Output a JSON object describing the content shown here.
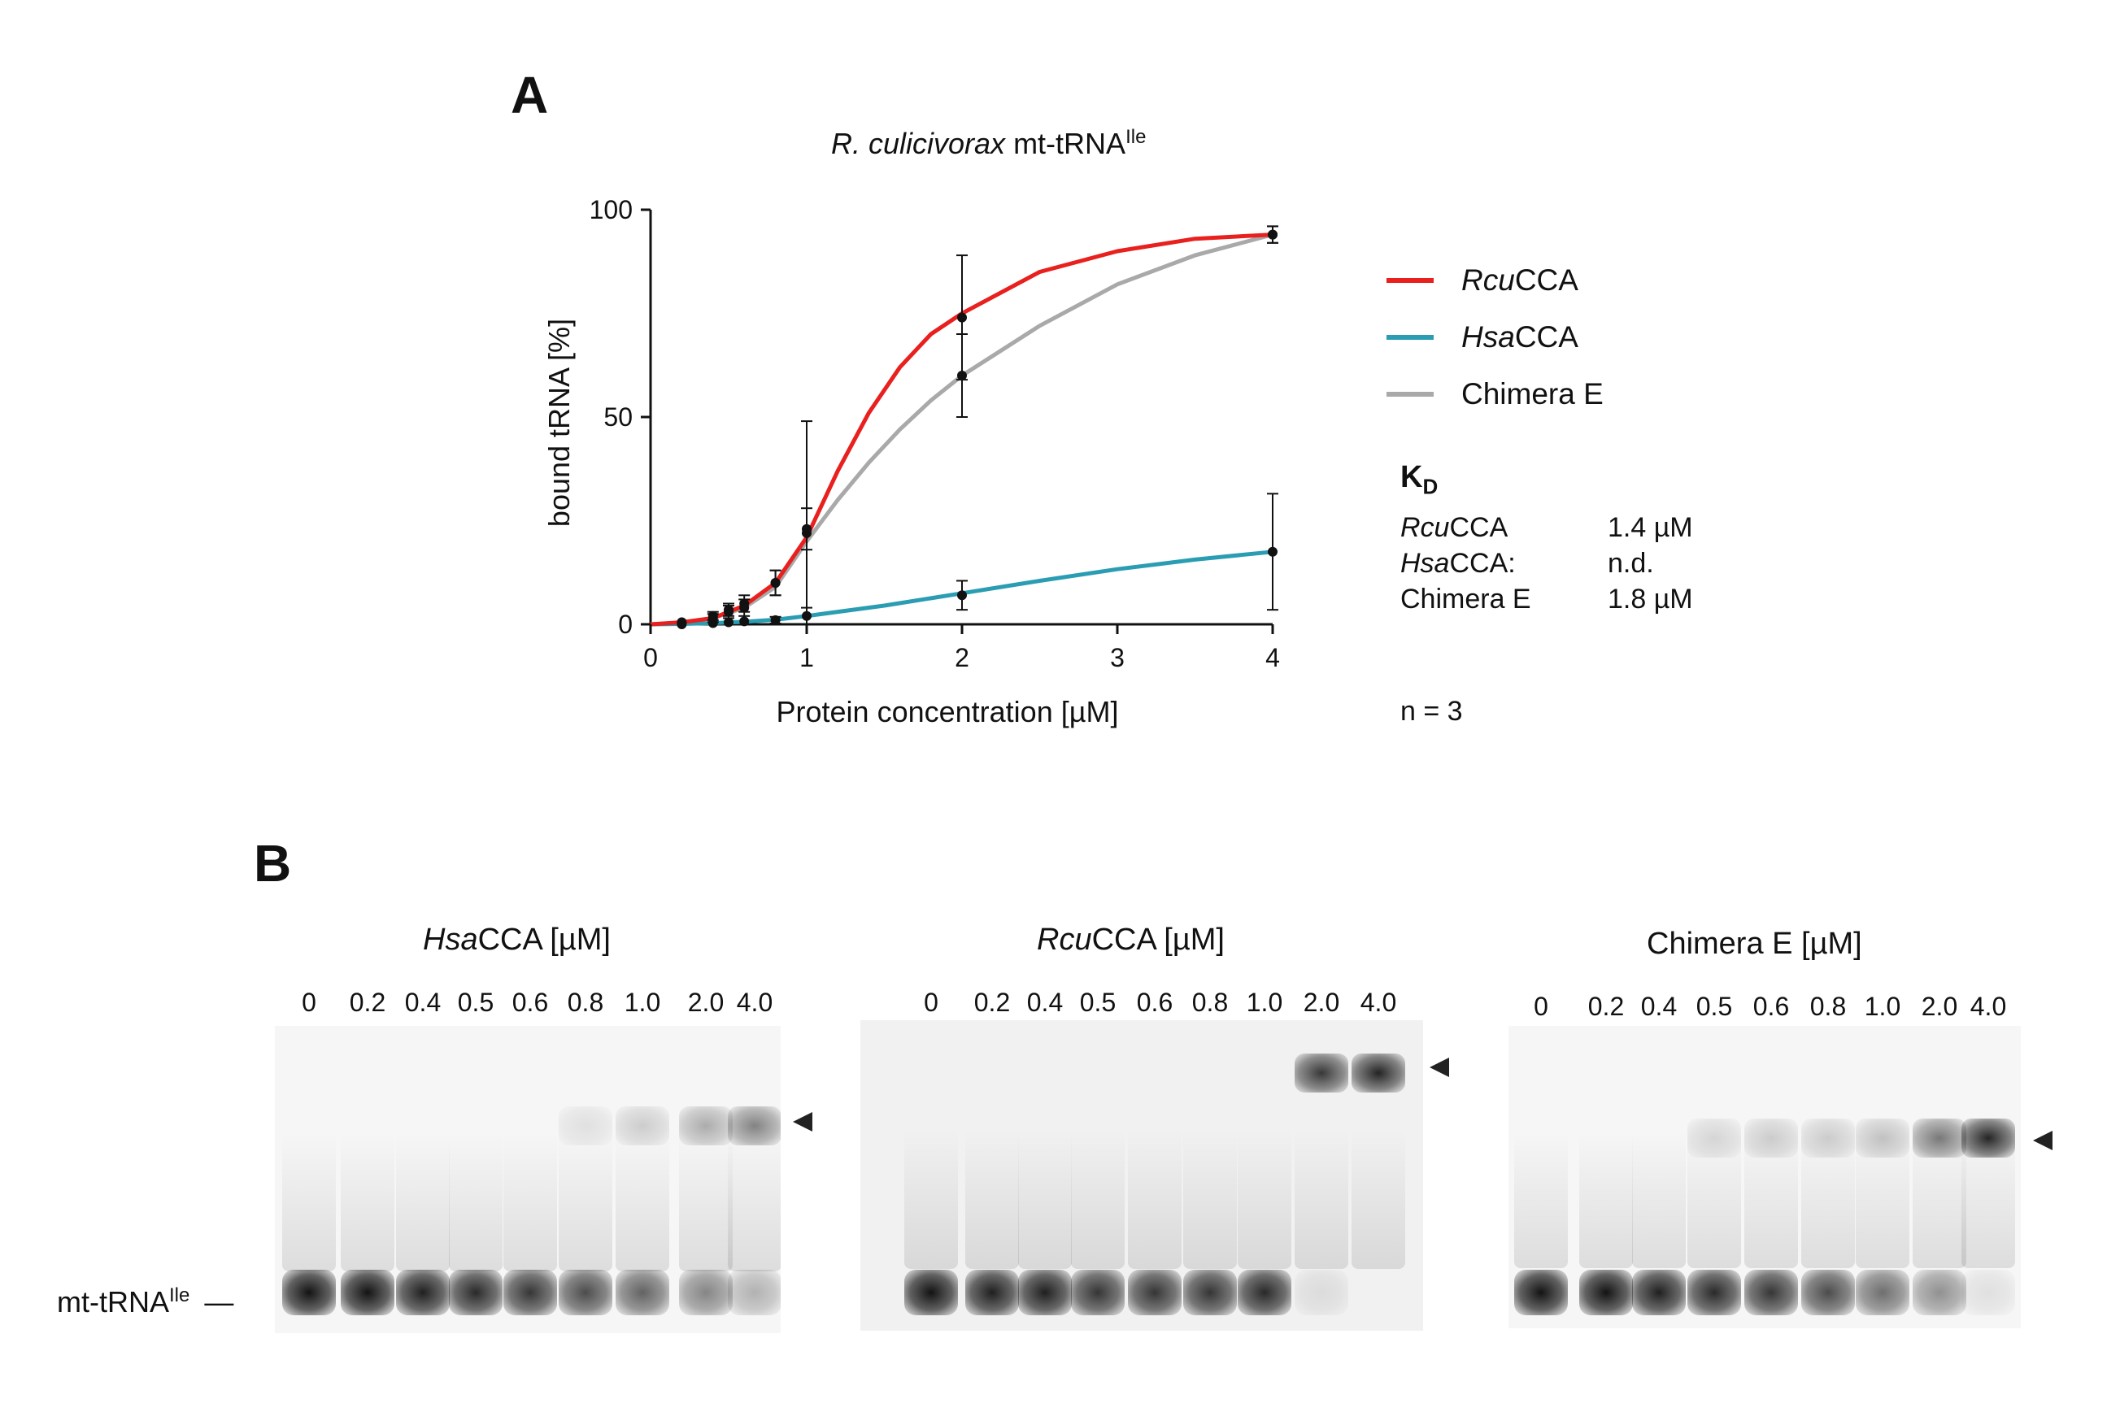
{
  "panels": {
    "a_letter": "A",
    "b_letter": "B"
  },
  "chart_data": {
    "type": "line",
    "title": "R. culicivorax mt-tRNA",
    "title_parts": {
      "species": "R. culicivorax",
      "rest": " mt-tRNA",
      "superscript": "Ile"
    },
    "xlabel": "Protein concentration [µM]",
    "ylabel": "bound tRNA [%]",
    "xlim": [
      0,
      4
    ],
    "ylim": [
      0,
      100
    ],
    "x_ticks": [
      0,
      1,
      2,
      3,
      4
    ],
    "y_ticks": [
      0,
      50,
      100
    ],
    "x_scale": "custom: 0–1 expanded, 1–4 linear",
    "series": [
      {
        "name": "RcuCCA",
        "color": "#e8201e",
        "x": [
          0.2,
          0.4,
          0.5,
          0.6,
          0.8,
          1.0,
          2.0,
          4.0
        ],
        "y": [
          0.5,
          2,
          3.5,
          5,
          10,
          22,
          74,
          94
        ],
        "err": [
          0.5,
          1,
          1.5,
          2,
          3,
          27,
          15,
          2
        ],
        "fit": [
          [
            0,
            0
          ],
          [
            0.2,
            0.5
          ],
          [
            0.4,
            1.5
          ],
          [
            0.6,
            4.5
          ],
          [
            0.8,
            10
          ],
          [
            1.0,
            21
          ],
          [
            1.2,
            37
          ],
          [
            1.4,
            51
          ],
          [
            1.6,
            62
          ],
          [
            1.8,
            70
          ],
          [
            2.0,
            75
          ],
          [
            2.5,
            85
          ],
          [
            3.0,
            90
          ],
          [
            3.5,
            93
          ],
          [
            4.0,
            94
          ]
        ]
      },
      {
        "name": "HsaCCA",
        "color": "#2a9db3",
        "x": [
          0.2,
          0.4,
          0.5,
          0.6,
          0.8,
          1.0,
          2.0,
          4.0
        ],
        "y": [
          0,
          0.3,
          0.5,
          0.7,
          1,
          2,
          7,
          17.5
        ],
        "err": [
          0.3,
          0.3,
          0.4,
          0.5,
          0.8,
          2,
          3.5,
          14
        ],
        "fit": [
          [
            0,
            0
          ],
          [
            0.2,
            0.1
          ],
          [
            0.4,
            0.3
          ],
          [
            0.6,
            0.6
          ],
          [
            0.8,
            1.1
          ],
          [
            1.0,
            2
          ],
          [
            1.5,
            4.5
          ],
          [
            2.0,
            7.5
          ],
          [
            2.5,
            10.5
          ],
          [
            3.0,
            13.3
          ],
          [
            3.5,
            15.6
          ],
          [
            4.0,
            17.5
          ]
        ]
      },
      {
        "name": "Chimera E",
        "color": "#a9a9a9",
        "x": [
          0.2,
          0.4,
          0.5,
          0.6,
          0.8,
          1.0,
          2.0,
          4.0
        ],
        "y": [
          0.5,
          1.5,
          3,
          4,
          10,
          23,
          60,
          94
        ],
        "err": [
          0.5,
          1,
          1.5,
          2,
          3,
          5,
          10,
          2
        ],
        "fit": [
          [
            0,
            0
          ],
          [
            0.2,
            0.4
          ],
          [
            0.4,
            1.5
          ],
          [
            0.6,
            4
          ],
          [
            0.8,
            9
          ],
          [
            1.0,
            20
          ],
          [
            1.2,
            30
          ],
          [
            1.4,
            39
          ],
          [
            1.6,
            47
          ],
          [
            1.8,
            54
          ],
          [
            2.0,
            60
          ],
          [
            2.5,
            72
          ],
          [
            3.0,
            82
          ],
          [
            3.5,
            89
          ],
          [
            4.0,
            94
          ]
        ]
      }
    ],
    "legend": {
      "position": "right",
      "labels": [
        {
          "italic": "Rcu",
          "rest": "CCA",
          "color": "#e8201e"
        },
        {
          "italic": "Hsa",
          "rest": "CCA",
          "color": "#2a9db3"
        },
        {
          "italic": "",
          "rest": "Chimera E",
          "color": "#a9a9a9"
        }
      ]
    }
  },
  "kd": {
    "title_main": "K",
    "title_sub": "D",
    "rows": [
      {
        "italic": "Rcu",
        "rest": "CCA",
        "value": "1.4 µM"
      },
      {
        "italic": "Hsa",
        "rest": "CCA:",
        "value": "n.d."
      },
      {
        "italic": "",
        "rest": "Chimera E",
        "value": "1.8 µM"
      }
    ],
    "n_label": "n = 3"
  },
  "gels": [
    {
      "title_italic": "Hsa",
      "title_rest": "CCA [µM]",
      "lanes": [
        "0",
        "0.2",
        "0.4",
        "0.5",
        "0.6",
        "0.8",
        "1.0",
        "2.0",
        "4.0"
      ]
    },
    {
      "title_italic": "Rcu",
      "title_rest": "CCA [µM]",
      "lanes": [
        "0",
        "0.2",
        "0.4",
        "0.5",
        "0.6",
        "0.8",
        "1.0",
        "2.0",
        "4.0"
      ]
    },
    {
      "title_italic": "",
      "title_rest": "Chimera E [µM]",
      "lanes": [
        "0",
        "0.2",
        "0.4",
        "0.5",
        "0.6",
        "0.8",
        "1.0",
        "2.0",
        "4.0"
      ]
    }
  ],
  "mt_label": {
    "main": "mt-tRNA",
    "superscript": "Ile",
    "dash": "—"
  }
}
